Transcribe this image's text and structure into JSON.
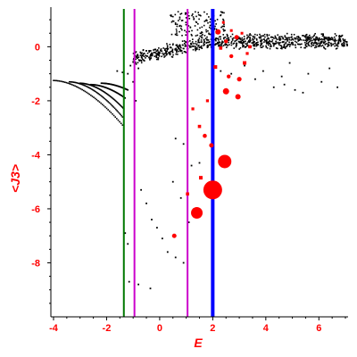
{
  "chart_data": {
    "type": "scatter",
    "title": "",
    "xlabel": "E",
    "ylabel": "<J3>",
    "xlim": [
      -4.1,
      7.1
    ],
    "ylim": [
      -10.0,
      1.4
    ],
    "xticks": [
      -4,
      -2,
      0,
      2,
      4,
      6
    ],
    "yticks": [
      0,
      -2,
      -4,
      -6,
      -8
    ],
    "xtick_labels": [
      "-4",
      "-2",
      "0",
      "2",
      "4",
      "6"
    ],
    "ytick_labels": [
      "0",
      "-2",
      "-4",
      "-6",
      "-8"
    ],
    "grid": false,
    "colors": {
      "axes": "#000000",
      "labels": "#ff0000",
      "black_points": "#000000",
      "red_points": "#ff0000",
      "green_line": "#007700",
      "magenta_line": "#cc00cc",
      "blue_line": "#0000ff"
    },
    "vertical_lines": [
      {
        "x": -1.35,
        "color": "#007700"
      },
      {
        "x": -0.95,
        "color": "#cc00cc"
      },
      {
        "x": 1.05,
        "color": "#cc00cc"
      },
      {
        "x": 2.0,
        "color": "#0000ff"
      }
    ],
    "black_curves": [
      {
        "x_range": [
          -4.0,
          -1.4
        ],
        "y_start": -1.25,
        "y_end": -2.9
      },
      {
        "x_range": [
          -3.4,
          -1.4
        ],
        "y_start": -1.3,
        "y_end": -2.6
      },
      {
        "x_range": [
          -3.0,
          -1.35
        ],
        "y_start": -1.35,
        "y_end": -2.3
      },
      {
        "x_range": [
          -2.6,
          -1.3
        ],
        "y_start": -1.4,
        "y_end": -1.9
      },
      {
        "x_range": [
          -2.2,
          -1.2
        ],
        "y_start": -1.35,
        "y_end": -1.6
      }
    ],
    "black_scatter_points": [
      {
        "x": -1.6,
        "y": -0.9
      },
      {
        "x": -1.4,
        "y": -0.95
      },
      {
        "x": -1.2,
        "y": -1.0
      },
      {
        "x": -0.8,
        "y": -0.8
      },
      {
        "x": -0.6,
        "y": -0.5
      },
      {
        "x": -0.4,
        "y": -0.4
      },
      {
        "x": -1.1,
        "y": -0.7
      },
      {
        "x": -1.0,
        "y": -1.3
      },
      {
        "x": -0.9,
        "y": -2.0
      },
      {
        "x": -0.7,
        "y": -5.3
      },
      {
        "x": -0.5,
        "y": -5.8
      },
      {
        "x": -1.3,
        "y": -6.9
      },
      {
        "x": -1.2,
        "y": -7.3
      },
      {
        "x": -0.3,
        "y": -6.4
      },
      {
        "x": -0.1,
        "y": -6.7
      },
      {
        "x": 0.1,
        "y": -7.1
      },
      {
        "x": 0.3,
        "y": -7.6
      },
      {
        "x": 0.6,
        "y": -7.8
      },
      {
        "x": 0.9,
        "y": -8.0
      },
      {
        "x": 1.1,
        "y": -6.5
      },
      {
        "x": 1.3,
        "y": -6.0
      },
      {
        "x": -1.15,
        "y": -8.7
      },
      {
        "x": -0.8,
        "y": -8.8
      },
      {
        "x": -0.35,
        "y": -8.95
      },
      {
        "x": 0.6,
        "y": -3.4
      },
      {
        "x": 0.9,
        "y": -3.6
      },
      {
        "x": 1.2,
        "y": -4.4
      },
      {
        "x": 0.5,
        "y": -5.0
      },
      {
        "x": 0.8,
        "y": -5.6
      },
      {
        "x": 1.5,
        "y": -4.3
      },
      {
        "x": 2.3,
        "y": -0.9
      },
      {
        "x": 2.7,
        "y": -1.0
      },
      {
        "x": 3.2,
        "y": -0.7
      },
      {
        "x": 3.6,
        "y": -1.2
      },
      {
        "x": 4.3,
        "y": -1.5
      },
      {
        "x": 4.7,
        "y": -1.4
      },
      {
        "x": 5.1,
        "y": -1.6
      },
      {
        "x": 5.6,
        "y": -1.0
      },
      {
        "x": 6.1,
        "y": -1.3
      },
      {
        "x": 6.7,
        "y": -1.5
      },
      {
        "x": 3.9,
        "y": -0.9
      },
      {
        "x": 4.6,
        "y": -1.1
      },
      {
        "x": 5.4,
        "y": -1.7
      },
      {
        "x": 6.4,
        "y": -0.8
      },
      {
        "x": 4.9,
        "y": -0.6
      }
    ],
    "black_band": {
      "x_range": [
        -1.0,
        7.1
      ],
      "y_low": -0.5,
      "y_high": 0.5
    },
    "black_upper_band": {
      "x_range": [
        0.4,
        2.5
      ],
      "y_low": 0.4,
      "y_high": 1.3
    },
    "red_points": [
      {
        "x": 2.0,
        "y": -5.3,
        "r": 10.5
      },
      {
        "x": 2.45,
        "y": -4.25,
        "r": 7.5
      },
      {
        "x": 1.4,
        "y": -6.15,
        "r": 6.5
      },
      {
        "x": 2.5,
        "y": -1.65,
        "r": 3.5
      },
      {
        "x": 2.95,
        "y": -1.85,
        "r": 3.0
      },
      {
        "x": 3.0,
        "y": -1.2,
        "r": 2.6
      },
      {
        "x": 2.6,
        "y": -1.1,
        "r": 2.2
      },
      {
        "x": 2.2,
        "y": 0.55,
        "r": 3.0
      },
      {
        "x": 2.9,
        "y": 0.35,
        "r": 2.5
      },
      {
        "x": 2.5,
        "y": 0.2,
        "r": 2.2
      },
      {
        "x": 2.7,
        "y": -0.35,
        "r": 2.2
      },
      {
        "x": 3.2,
        "y": -0.6,
        "r": 2.0
      },
      {
        "x": 3.4,
        "y": 0.0,
        "r": 1.8
      },
      {
        "x": 2.1,
        "y": -0.75,
        "r": 2.0
      },
      {
        "x": 2.3,
        "y": -0.05,
        "r": 1.8
      },
      {
        "x": 1.95,
        "y": -3.65,
        "r": 2.5
      },
      {
        "x": 1.7,
        "y": -3.3,
        "r": 2.3
      },
      {
        "x": 1.5,
        "y": -2.95,
        "r": 1.8
      },
      {
        "x": 1.25,
        "y": -2.3,
        "r": 1.6
      },
      {
        "x": 1.8,
        "y": -2.0,
        "r": 1.6
      },
      {
        "x": 1.55,
        "y": -4.85,
        "r": 2.0
      },
      {
        "x": 0.55,
        "y": -7.0,
        "r": 2.5
      },
      {
        "x": 1.05,
        "y": -5.45,
        "r": 1.8
      },
      {
        "x": 2.7,
        "y": 0.6,
        "r": 1.5
      },
      {
        "x": 3.1,
        "y": 0.5,
        "r": 1.5
      },
      {
        "x": 2.4,
        "y": 0.9,
        "r": 1.5
      },
      {
        "x": 3.3,
        "y": -0.25,
        "r": 1.6
      }
    ]
  }
}
